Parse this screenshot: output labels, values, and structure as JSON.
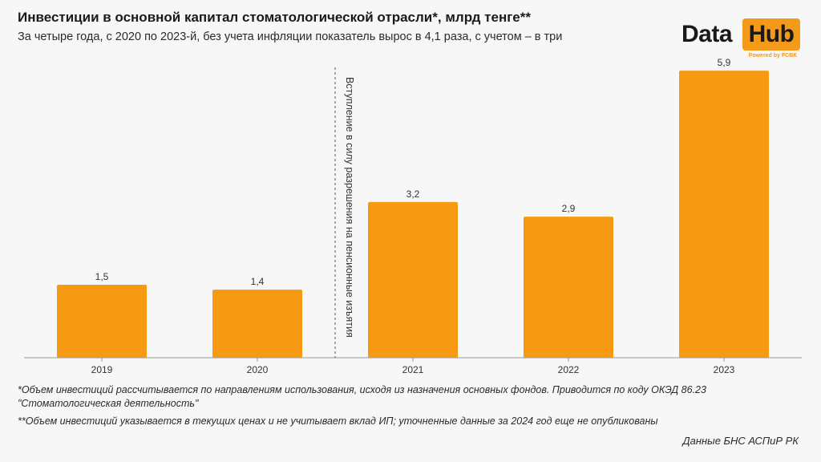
{
  "header": {
    "title": "Инвестиции в основной капитал стоматологической отрасли*, млрд тенге**",
    "subtitle": "За четыре года, с 2020 по 2023-й, без учета инфляции показатель вырос в 4,1 раза, с учетом – в три"
  },
  "logo": {
    "text_left": "Data",
    "text_right": "Hub",
    "tagline": "Powered by FCBK"
  },
  "chart_data": {
    "type": "bar",
    "categories": [
      "2019",
      "2020",
      "2021",
      "2022",
      "2023"
    ],
    "values": [
      1.5,
      1.4,
      3.2,
      2.9,
      5.9
    ],
    "value_labels": [
      "1,5",
      "1,4",
      "3,2",
      "2,9",
      "5,9"
    ],
    "bar_color": "#f59a12",
    "ylim": [
      0,
      6
    ],
    "grid": false,
    "annotation": {
      "text": "Вступление в силу разрешения на пенсионные изъятия",
      "between": [
        "2020",
        "2021"
      ],
      "style": "dashed-vertical-line"
    }
  },
  "footnotes": {
    "note1": "*Объем инвестиций рассчитывается по направлениям использования, исходя из назначения основных фондов. Приводится по коду ОКЭД 86.23 \"Стоматологическая деятельность\"",
    "note2": "**Объем инвестиций указывается в текущих ценах и не учитывает вклад ИП; уточненные данные за 2024 год еще не опубликованы"
  },
  "source": "Данные БНС АСПиР РК"
}
